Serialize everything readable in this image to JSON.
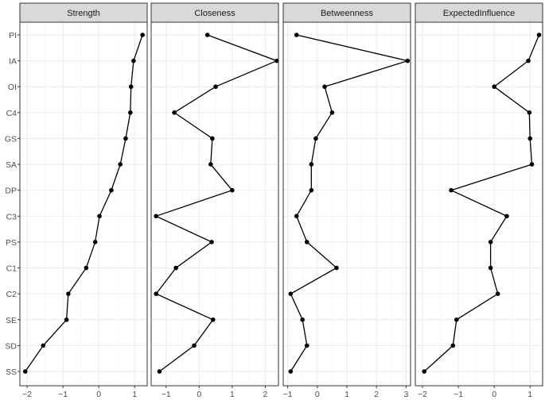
{
  "chart_data": {
    "type": "line",
    "categories": [
      "PI",
      "IA",
      "OI",
      "C4",
      "GS",
      "SA",
      "DP",
      "C3",
      "PS",
      "C1",
      "C2",
      "SE",
      "SD",
      "SS"
    ],
    "panels": [
      {
        "title": "Strength",
        "xlim": [
          -2.2,
          1.35
        ],
        "xticks": [
          -2,
          -1,
          0,
          1
        ],
        "values": [
          1.22,
          0.97,
          0.9,
          0.88,
          0.75,
          0.6,
          0.35,
          0.02,
          -0.1,
          -0.35,
          -0.85,
          -0.9,
          -1.55,
          -2.05
        ]
      },
      {
        "title": "Closeness",
        "xlim": [
          -1.45,
          2.4
        ],
        "xticks": [
          -1,
          0,
          1,
          2
        ],
        "values": [
          0.25,
          2.35,
          0.5,
          -0.75,
          0.4,
          0.35,
          1.0,
          -1.3,
          0.38,
          -0.7,
          -1.3,
          0.42,
          -0.15,
          -1.2
        ]
      },
      {
        "title": "Betweenness",
        "xlim": [
          -1.15,
          3.15
        ],
        "xticks": [
          -1,
          0,
          1,
          2,
          3
        ],
        "values": [
          -0.7,
          3.05,
          0.25,
          0.5,
          -0.05,
          -0.2,
          -0.2,
          -0.7,
          -0.35,
          0.65,
          -0.9,
          -0.5,
          -0.35,
          -0.9
        ]
      },
      {
        "title": "ExpectedInfluence",
        "xlim": [
          -2.2,
          1.35
        ],
        "xticks": [
          -2,
          -1,
          0,
          1
        ],
        "values": [
          1.25,
          0.95,
          0.0,
          0.98,
          1.0,
          1.05,
          -1.2,
          0.35,
          -0.1,
          -0.1,
          0.1,
          -1.05,
          -1.15,
          -1.95
        ]
      }
    ],
    "grid": true,
    "legend": "none"
  }
}
